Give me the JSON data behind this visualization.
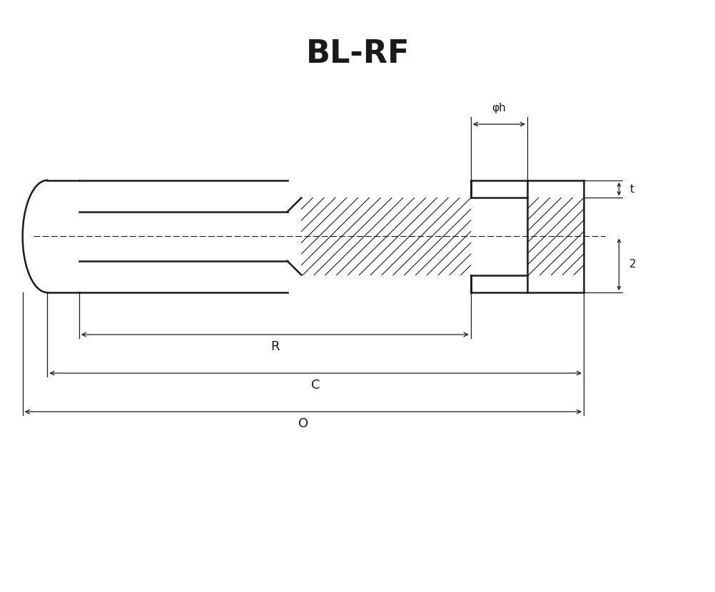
{
  "title": "BL-RF",
  "title_fontsize": 32,
  "title_fontweight": "bold",
  "bg_color": "#ffffff",
  "line_color": "#1a1a1a",
  "dim_labels": {
    "phi_h": "φh",
    "t": "t",
    "z": "2",
    "R": "R",
    "C": "C",
    "O": "O"
  },
  "figsize": [
    10.03,
    8.3
  ],
  "dpi": 100
}
